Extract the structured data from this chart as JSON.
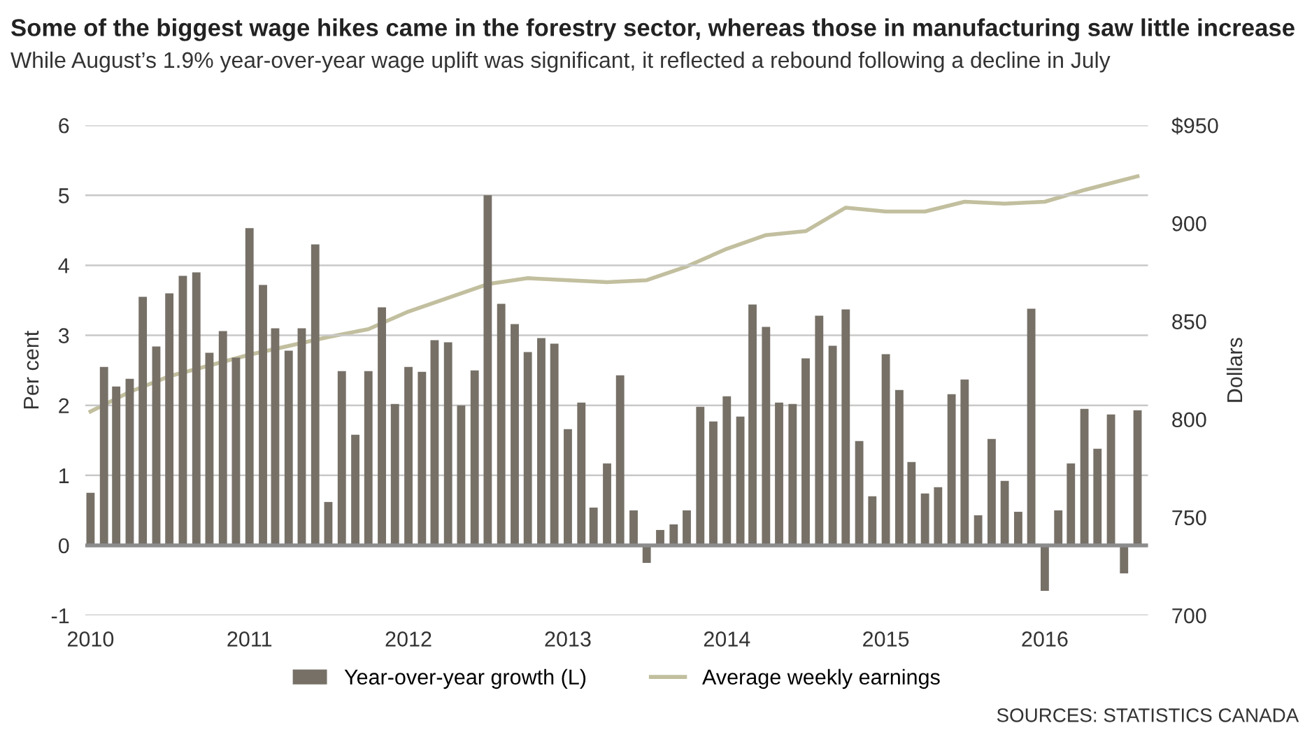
{
  "chart_data": {
    "type": "bar",
    "title": "Some of the biggest wage hikes came in the forestry sector, whereas those in manufacturing saw little increase",
    "subtitle": "While August’s 1.9% year-over-year wage uplift was significant, it reflected a rebound following a decline in July",
    "ylabel": "Per cent",
    "y2label": "Dollars",
    "annotations": [
      "SOURCES: STATISTICS CANADA"
    ],
    "x": [
      "2010-01",
      "2010-02",
      "2010-03",
      "2010-04",
      "2010-05",
      "2010-06",
      "2010-07",
      "2010-08",
      "2010-09",
      "2010-10",
      "2010-11",
      "2010-12",
      "2011-01",
      "2011-02",
      "2011-03",
      "2011-04",
      "2011-05",
      "2011-06",
      "2011-07",
      "2011-08",
      "2011-09",
      "2011-10",
      "2011-11",
      "2011-12",
      "2012-01",
      "2012-02",
      "2012-03",
      "2012-04",
      "2012-05",
      "2012-06",
      "2012-07",
      "2012-08",
      "2012-09",
      "2012-10",
      "2012-11",
      "2012-12",
      "2013-01",
      "2013-02",
      "2013-03",
      "2013-04",
      "2013-05",
      "2013-06",
      "2013-07",
      "2013-08",
      "2013-09",
      "2013-10",
      "2013-11",
      "2013-12",
      "2014-01",
      "2014-02",
      "2014-03",
      "2014-04",
      "2014-05",
      "2014-06",
      "2014-07",
      "2014-08",
      "2014-09",
      "2014-10",
      "2014-11",
      "2014-12",
      "2015-01",
      "2015-02",
      "2015-03",
      "2015-04",
      "2015-05",
      "2015-06",
      "2015-07",
      "2015-08",
      "2015-09",
      "2015-10",
      "2015-11",
      "2015-12",
      "2016-01",
      "2016-02",
      "2016-03",
      "2016-04",
      "2016-05",
      "2016-06",
      "2016-07",
      "2016-08"
    ],
    "series": [
      {
        "name": "Year-over-year growth (L)",
        "color": "#767067",
        "values": [
          0.75,
          2.55,
          2.27,
          2.38,
          3.55,
          2.84,
          3.6,
          3.85,
          3.9,
          2.75,
          3.06,
          2.68,
          4.53,
          3.72,
          3.1,
          2.78,
          3.1,
          4.3,
          0.62,
          2.49,
          1.58,
          2.49,
          3.4,
          2.02,
          2.55,
          2.48,
          2.93,
          2.9,
          2.0,
          2.5,
          5.0,
          3.45,
          3.16,
          2.76,
          2.96,
          2.88,
          1.66,
          2.04,
          0.54,
          1.17,
          2.43,
          0.5,
          -0.25,
          0.22,
          0.3,
          0.5,
          1.98,
          1.77,
          2.13,
          1.84,
          3.44,
          3.12,
          2.04,
          2.02,
          2.67,
          3.28,
          2.85,
          3.37,
          1.49,
          0.7,
          2.73,
          2.22,
          1.19,
          0.74,
          0.83,
          2.16,
          2.37,
          0.43,
          1.52,
          0.92,
          0.48,
          3.38,
          -0.65,
          0.5,
          1.17,
          1.95,
          1.38,
          1.87,
          -0.4,
          1.93
        ]
      },
      {
        "name": "Average weekly earnings",
        "type": "line",
        "axis": "y2",
        "color": "#c2bf9f",
        "x": [
          "2010-01",
          "2010-04",
          "2010-07",
          "2011-01",
          "2011-07",
          "2011-10",
          "2012-01",
          "2012-07",
          "2012-10",
          "2013-01",
          "2013-04",
          "2013-07",
          "2013-10",
          "2014-01",
          "2014-04",
          "2014-07",
          "2014-10",
          "2015-01",
          "2015-04",
          "2015-07",
          "2015-10",
          "2016-01",
          "2016-04",
          "2016-08"
        ],
        "values": [
          804,
          814,
          822,
          833,
          842,
          846,
          855,
          869,
          872,
          871,
          870,
          871,
          878,
          887,
          894,
          896,
          908,
          906,
          906,
          911,
          910,
          911,
          917,
          924
        ]
      }
    ],
    "xlim": [
      "2009-12-20",
      "2016-08-25"
    ],
    "xticks": [
      "2010",
      "2011",
      "2012",
      "2013",
      "2014",
      "2015",
      "2016"
    ],
    "ylim": [
      -1,
      6
    ],
    "yticks": [
      -1,
      0,
      1,
      2,
      3,
      4,
      5,
      6
    ],
    "y2lim": [
      700,
      950
    ],
    "y2ticks": [
      700,
      750,
      800,
      850,
      900,
      {
        "value": 950,
        "label": "$950"
      }
    ],
    "ref_lines": [
      {
        "axis": "y",
        "value": 0,
        "color": "#8c8c8c"
      }
    ],
    "grid": "y",
    "legend": "bottom"
  }
}
